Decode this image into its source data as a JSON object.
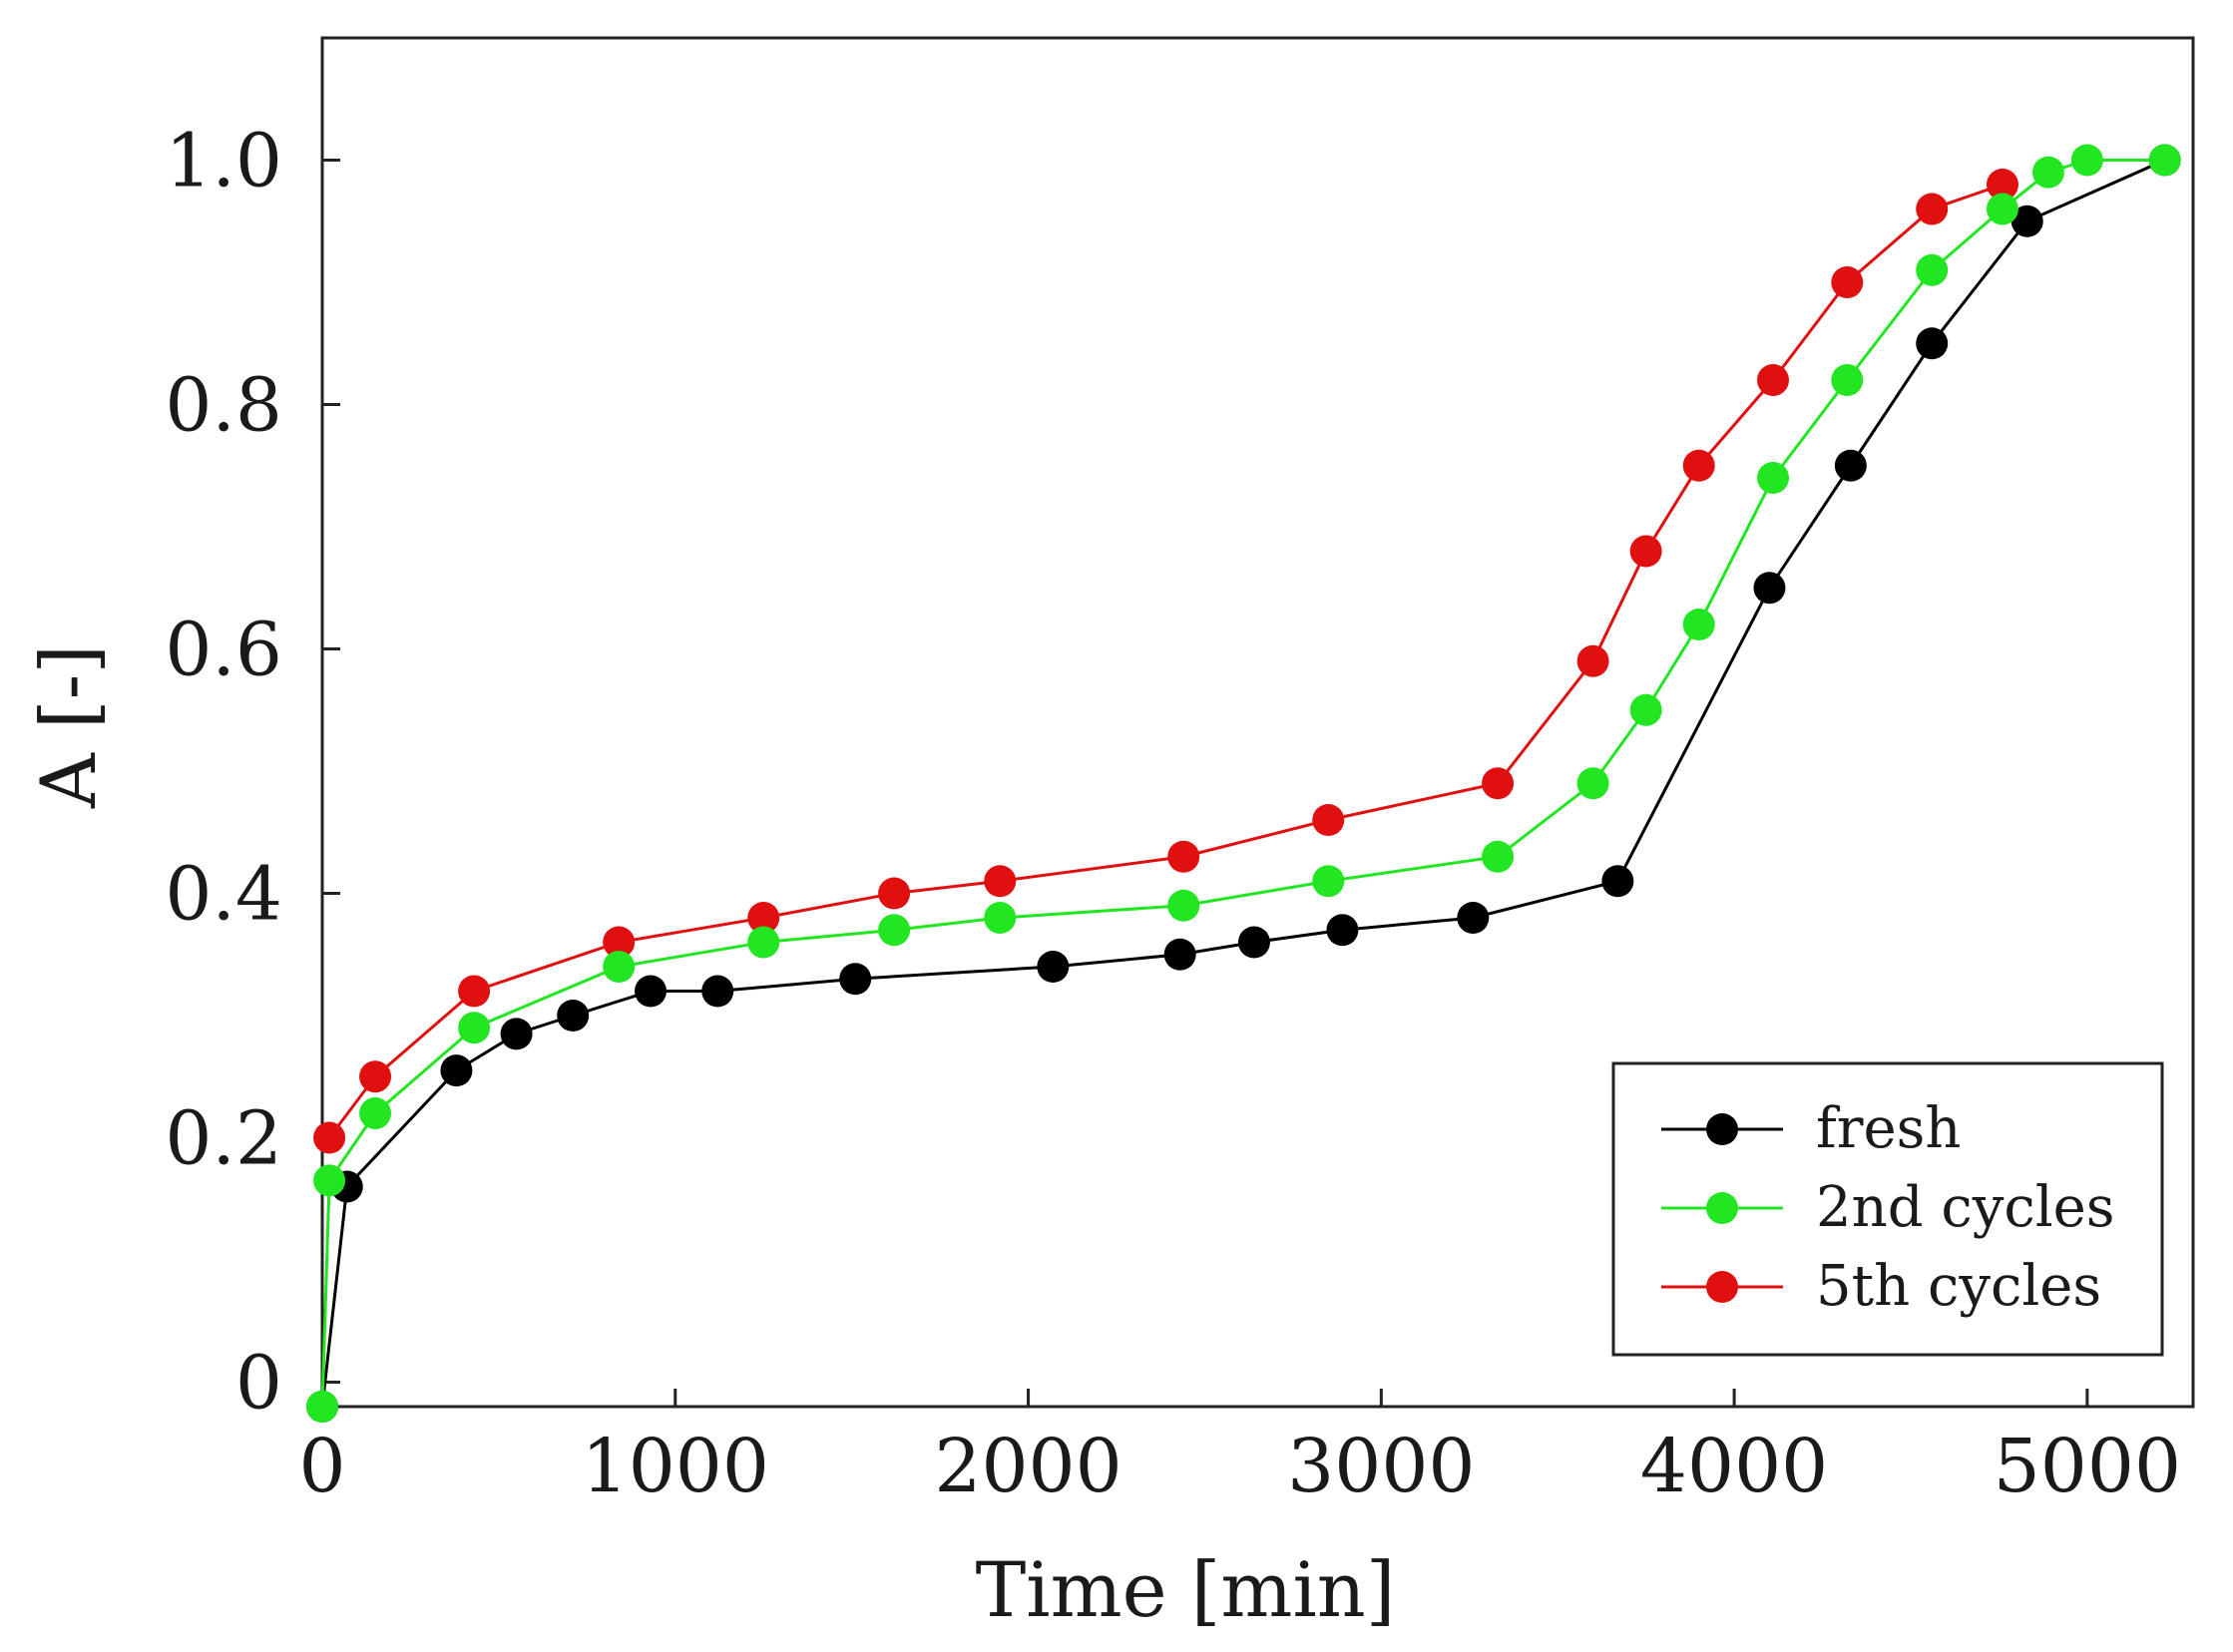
{
  "chart_data": {
    "type": "line",
    "title": "",
    "xlabel": "Time [min]",
    "ylabel": "A [-]",
    "xlim": [
      0,
      5300
    ],
    "ylim": [
      -0.02,
      1.1
    ],
    "xticks": [
      0,
      1000,
      2000,
      3000,
      4000,
      5000
    ],
    "xtick_labels": [
      "0",
      "1000",
      "2000",
      "3000",
      "4000",
      "5000"
    ],
    "yticks": [
      0,
      0.2,
      0.4,
      0.6,
      0.8,
      1.0
    ],
    "ytick_labels": [
      "0",
      "0.2",
      "0.4",
      "0.6",
      "0.8",
      "1.0"
    ],
    "grid": false,
    "legend_position": "bottom-right",
    "series": [
      {
        "name": "fresh",
        "color": "#000000",
        "x": [
          0,
          70,
          380,
          550,
          710,
          930,
          1120,
          1510,
          2070,
          2430,
          2640,
          2890,
          3260,
          3670,
          4100,
          4330,
          4560,
          4830,
          5220
        ],
        "y": [
          -0.02,
          0.16,
          0.255,
          0.285,
          0.3,
          0.32,
          0.32,
          0.33,
          0.34,
          0.35,
          0.36,
          0.37,
          0.38,
          0.41,
          0.65,
          0.75,
          0.85,
          0.95,
          1.0
        ]
      },
      {
        "name": "2nd cycles",
        "color": "#22e622",
        "x": [
          0,
          20,
          150,
          430,
          840,
          1250,
          1620,
          1920,
          2440,
          2850,
          3330,
          3600,
          3750,
          3900,
          4110,
          4320,
          4560,
          4760,
          4890,
          5000,
          5220
        ],
        "y": [
          -0.02,
          0.165,
          0.22,
          0.29,
          0.34,
          0.36,
          0.37,
          0.38,
          0.39,
          0.41,
          0.43,
          0.49,
          0.55,
          0.62,
          0.74,
          0.82,
          0.91,
          0.96,
          0.99,
          1.0,
          1.0
        ]
      },
      {
        "name": "5th cycles",
        "color": "#e01010",
        "x": [
          20,
          150,
          430,
          840,
          1250,
          1620,
          1920,
          2440,
          2850,
          3330,
          3600,
          3750,
          3900,
          4110,
          4320,
          4560,
          4760
        ],
        "y": [
          0.2,
          0.25,
          0.32,
          0.36,
          0.38,
          0.4,
          0.41,
          0.43,
          0.46,
          0.49,
          0.59,
          0.68,
          0.75,
          0.82,
          0.9,
          0.96,
          0.98
        ]
      }
    ]
  }
}
